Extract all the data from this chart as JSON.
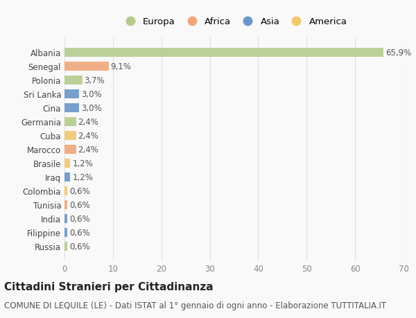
{
  "categories": [
    "Albania",
    "Senegal",
    "Polonia",
    "Sri Lanka",
    "Cina",
    "Germania",
    "Cuba",
    "Marocco",
    "Brasile",
    "Iraq",
    "Colombia",
    "Tunisia",
    "India",
    "Filippine",
    "Russia"
  ],
  "values": [
    65.9,
    9.1,
    3.7,
    3.0,
    3.0,
    2.4,
    2.4,
    2.4,
    1.2,
    1.2,
    0.6,
    0.6,
    0.6,
    0.6,
    0.6
  ],
  "labels": [
    "65,9%",
    "9,1%",
    "3,7%",
    "3,0%",
    "3,0%",
    "2,4%",
    "2,4%",
    "2,4%",
    "1,2%",
    "1,2%",
    "0,6%",
    "0,6%",
    "0,6%",
    "0,6%",
    "0,6%"
  ],
  "continents": [
    "Europa",
    "Africa",
    "Europa",
    "Asia",
    "Asia",
    "Europa",
    "America",
    "Africa",
    "America",
    "Asia",
    "America",
    "Africa",
    "Asia",
    "Asia",
    "Europa"
  ],
  "continent_colors": {
    "Europa": "#b5cc8e",
    "Africa": "#f0a87a",
    "Asia": "#6b96c8",
    "America": "#f0c870"
  },
  "legend_order": [
    "Europa",
    "Africa",
    "Asia",
    "America"
  ],
  "title": "Cittadini Stranieri per Cittadinanza",
  "subtitle": "COMUNE DI LEQUILE (LE) - Dati ISTAT al 1° gennaio di ogni anno - Elaborazione TUTTITALIA.IT",
  "xlim": [
    0,
    70
  ],
  "xticks": [
    0,
    10,
    20,
    30,
    40,
    50,
    60,
    70
  ],
  "background_color": "#f9f9f9",
  "grid_color": "#e0e0e0",
  "bar_height": 0.65,
  "title_fontsize": 11,
  "subtitle_fontsize": 8.5,
  "label_fontsize": 8.5,
  "tick_fontsize": 8.5,
  "legend_fontsize": 9.5
}
